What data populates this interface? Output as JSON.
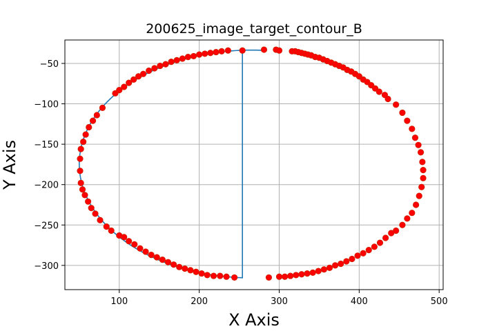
{
  "chart_data": {
    "type": "scatter",
    "title": "200625_image_target_contour_B",
    "xlabel": "X Axis",
    "ylabel": "Y Axis",
    "xlim": [
      32,
      505
    ],
    "ylim": [
      -330,
      -21
    ],
    "xticks": [
      100,
      200,
      300,
      400,
      500
    ],
    "yticks": [
      -50,
      -100,
      -150,
      -200,
      -250,
      -300
    ],
    "grid": true,
    "legend": "none",
    "line_color": "#1f77b4",
    "marker_color": "#ff0000",
    "marker_edge_color": "#cc2200",
    "ellipse": {
      "cx": 265.5,
      "cy": -174.5,
      "rx": 215.5,
      "ry": 141
    },
    "gap": {
      "x_from": 254,
      "x_to": 281
    },
    "points": [
      [
        281,
        -33
      ],
      [
        296,
        -33
      ],
      [
        300,
        -34
      ],
      [
        316,
        -35
      ],
      [
        320,
        -35
      ],
      [
        324,
        -36
      ],
      [
        328,
        -37
      ],
      [
        332,
        -38
      ],
      [
        336,
        -39
      ],
      [
        340,
        -40
      ],
      [
        345,
        -42
      ],
      [
        350,
        -43
      ],
      [
        355,
        -45
      ],
      [
        360,
        -47
      ],
      [
        365,
        -49
      ],
      [
        370,
        -51
      ],
      [
        375,
        -53
      ],
      [
        380,
        -55
      ],
      [
        385,
        -58
      ],
      [
        390,
        -60
      ],
      [
        395,
        -63
      ],
      [
        400,
        -66
      ],
      [
        405,
        -70
      ],
      [
        410,
        -73
      ],
      [
        415,
        -77
      ],
      [
        420,
        -81
      ],
      [
        425,
        -85
      ],
      [
        432,
        -89
      ],
      [
        436,
        -94
      ],
      [
        446,
        -101
      ],
      [
        454,
        -111
      ],
      [
        460,
        -121
      ],
      [
        466,
        -131
      ],
      [
        470,
        -142
      ],
      [
        474,
        -151
      ],
      [
        477,
        -160
      ],
      [
        479,
        -172
      ],
      [
        480,
        -182
      ],
      [
        480,
        -192
      ],
      [
        478,
        -203
      ],
      [
        475,
        -214
      ],
      [
        471,
        -225
      ],
      [
        466,
        -235
      ],
      [
        460,
        -242
      ],
      [
        454,
        -250
      ],
      [
        446,
        -257
      ],
      [
        440,
        -260
      ],
      [
        433,
        -266
      ],
      [
        426,
        -272
      ],
      [
        419,
        -277
      ],
      [
        412,
        -281
      ],
      [
        405,
        -285
      ],
      [
        398,
        -288
      ],
      [
        391,
        -292
      ],
      [
        384,
        -295
      ],
      [
        377,
        -298
      ],
      [
        370,
        -300
      ],
      [
        363,
        -303
      ],
      [
        356,
        -305
      ],
      [
        349,
        -307
      ],
      [
        342,
        -309
      ],
      [
        335,
        -310
      ],
      [
        328,
        -311
      ],
      [
        321,
        -312
      ],
      [
        314,
        -313
      ],
      [
        307,
        -314
      ],
      [
        300,
        -314
      ],
      [
        287,
        -315
      ],
      [
        244,
        -315
      ],
      [
        234,
        -314
      ],
      [
        226,
        -313
      ],
      [
        218,
        -313
      ],
      [
        210,
        -312
      ],
      [
        203,
        -310
      ],
      [
        196,
        -308
      ],
      [
        189,
        -306
      ],
      [
        182,
        -304
      ],
      [
        175,
        -302
      ],
      [
        168,
        -299
      ],
      [
        161,
        -296
      ],
      [
        154,
        -293
      ],
      [
        147,
        -290
      ],
      [
        140,
        -287
      ],
      [
        133,
        -283
      ],
      [
        126,
        -279
      ],
      [
        119,
        -274
      ],
      [
        112,
        -270
      ],
      [
        106,
        -265
      ],
      [
        100,
        -263
      ],
      [
        90,
        -257
      ],
      [
        84,
        -252
      ],
      [
        76,
        -244
      ],
      [
        70,
        -236
      ],
      [
        65,
        -229
      ],
      [
        61,
        -221
      ],
      [
        57,
        -213
      ],
      [
        54,
        -206
      ],
      [
        52,
        -198
      ],
      [
        51,
        -183
      ],
      [
        51,
        -168
      ],
      [
        52,
        -156
      ],
      [
        55,
        -147
      ],
      [
        58,
        -138
      ],
      [
        62,
        -129
      ],
      [
        67,
        -121
      ],
      [
        72,
        -114
      ],
      [
        79,
        -105
      ],
      [
        95,
        -87
      ],
      [
        100,
        -83
      ],
      [
        106,
        -79
      ],
      [
        112,
        -74
      ],
      [
        118,
        -70
      ],
      [
        124,
        -66
      ],
      [
        130,
        -63
      ],
      [
        137,
        -59
      ],
      [
        144,
        -56
      ],
      [
        151,
        -53
      ],
      [
        158,
        -51
      ],
      [
        165,
        -48
      ],
      [
        172,
        -46
      ],
      [
        179,
        -44
      ],
      [
        186,
        -42
      ],
      [
        193,
        -41
      ],
      [
        200,
        -39
      ],
      [
        207,
        -38
      ],
      [
        214,
        -37
      ],
      [
        221,
        -36
      ],
      [
        228,
        -35
      ],
      [
        236,
        -34
      ],
      [
        254,
        -34
      ]
    ]
  }
}
